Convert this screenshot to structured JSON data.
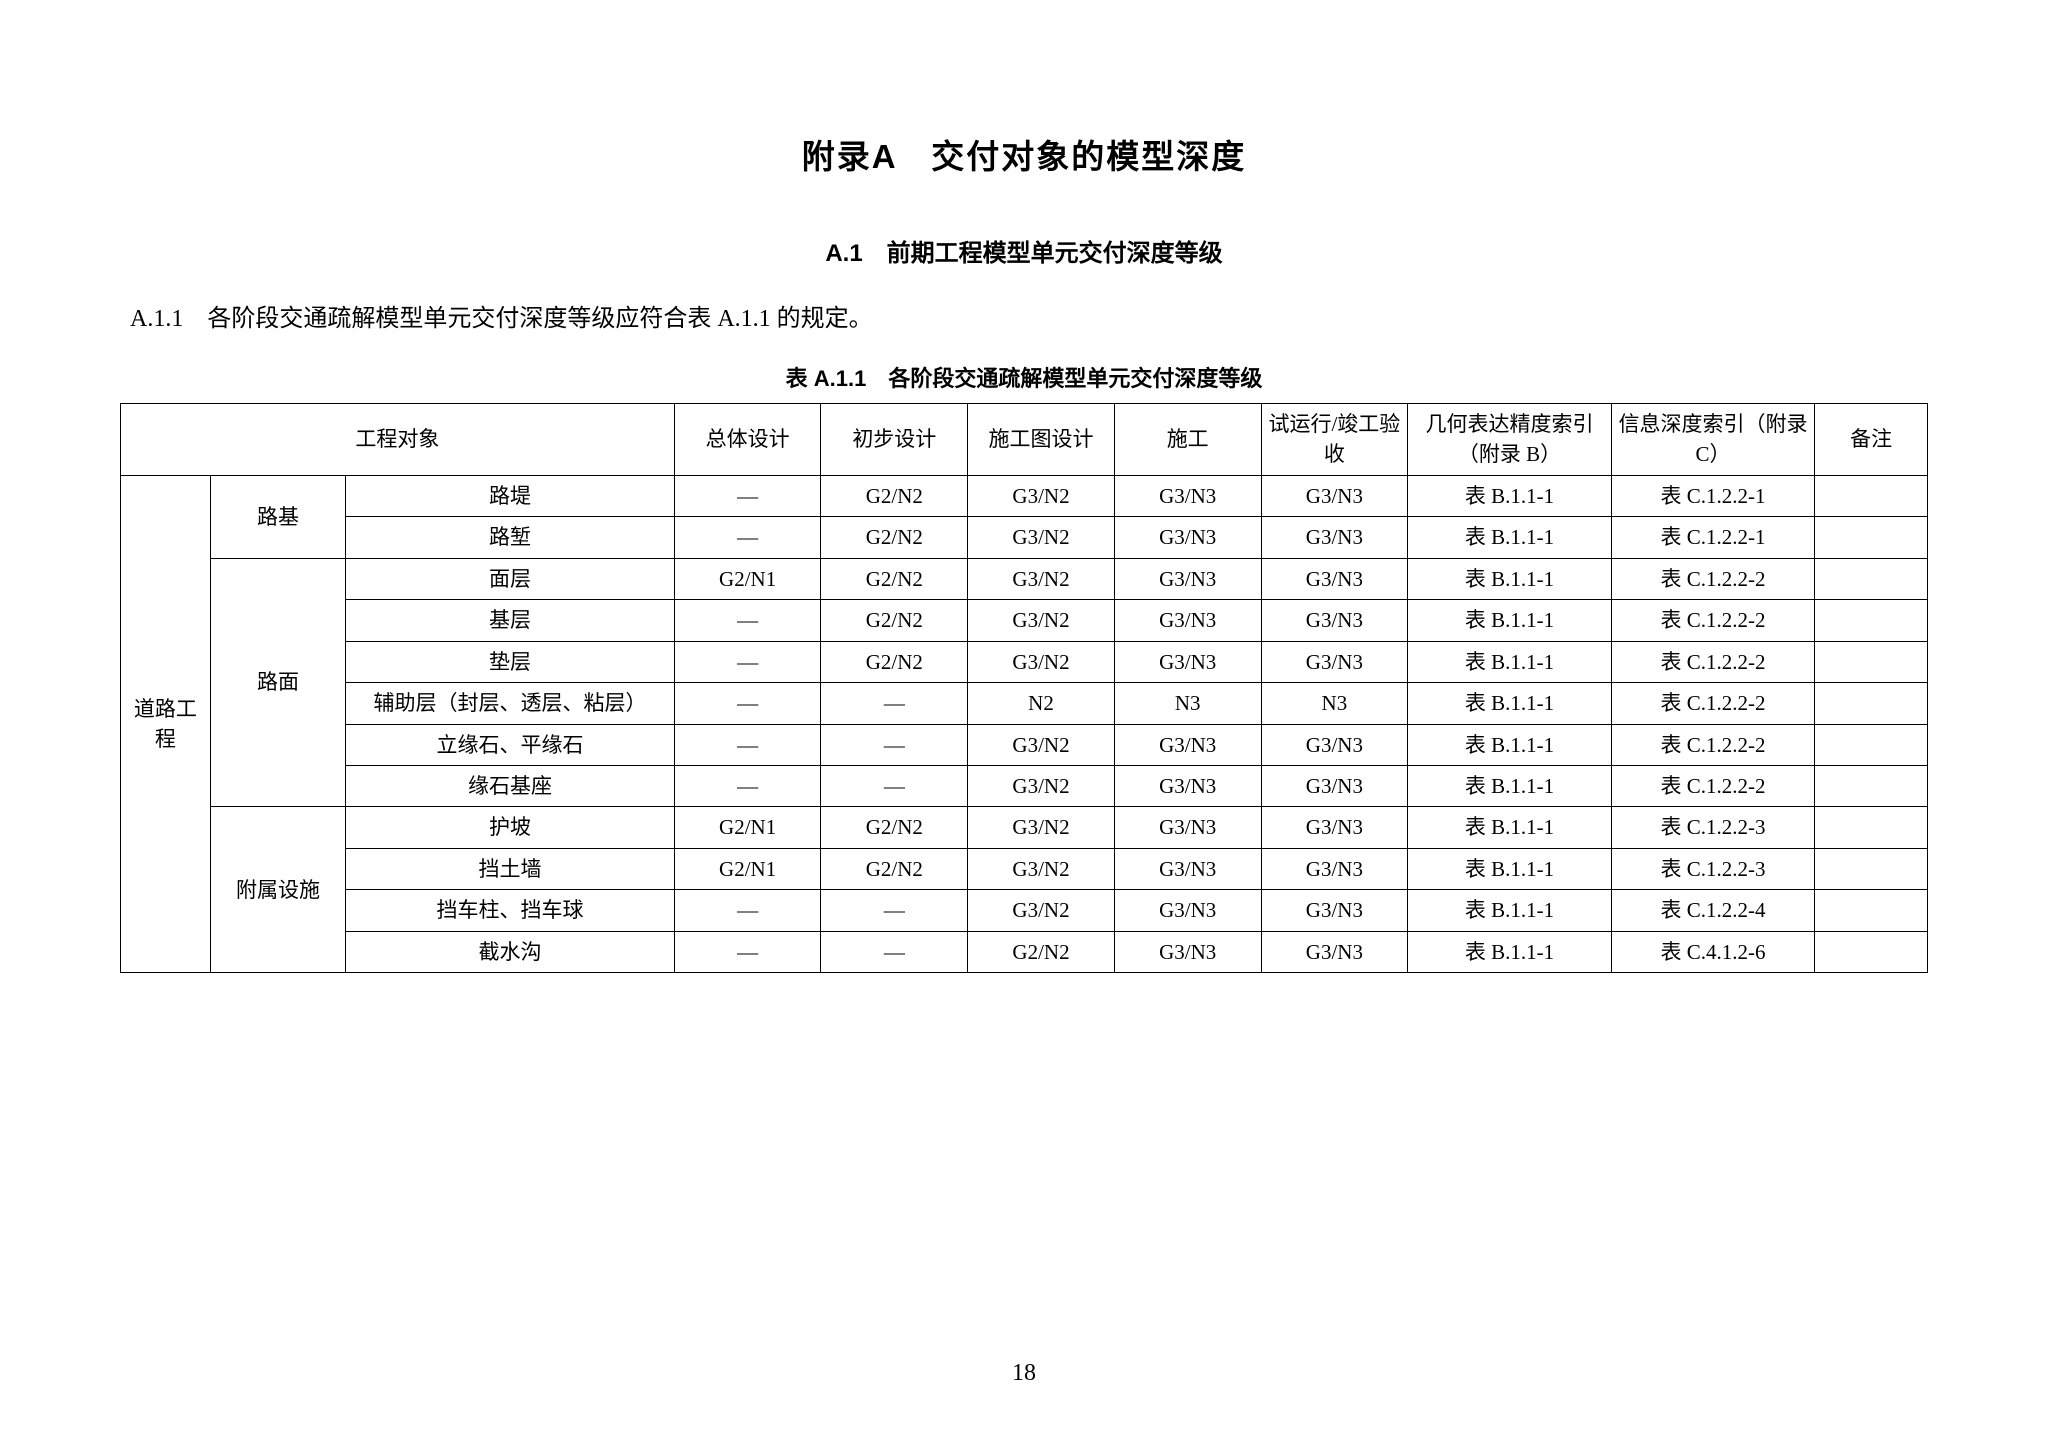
{
  "title": "附录A　交付对象的模型深度",
  "section_title": "A.1　前期工程模型单元交付深度等级",
  "rule": "A.1.1　各阶段交通疏解模型单元交付深度等级应符合表 A.1.1 的规定。",
  "table_caption": "表 A.1.1　各阶段交通疏解模型单元交付深度等级",
  "page_number": "18",
  "table": {
    "headers": {
      "eng_object": "工程对象",
      "overall": "总体设计",
      "prelim": "初步设计",
      "construct_dwg": "施工图设计",
      "construct": "施工",
      "trial": "试运行/竣工验收",
      "geo_index": "几何表达精度索引（附录 B）",
      "info_index": "信息深度索引（附录 C）",
      "note": "备注"
    },
    "cat1_label": "道路工程",
    "groups": [
      {
        "cat2": "路基",
        "rows": [
          {
            "item": "路堤",
            "overall": "—",
            "prelim": "G2/N2",
            "cdwg": "G3/N2",
            "constr": "G3/N3",
            "trial": "G3/N3",
            "geo": "表 B.1.1-1",
            "info": "表 C.1.2.2-1",
            "note": ""
          },
          {
            "item": "路堑",
            "overall": "—",
            "prelim": "G2/N2",
            "cdwg": "G3/N2",
            "constr": "G3/N3",
            "trial": "G3/N3",
            "geo": "表 B.1.1-1",
            "info": "表 C.1.2.2-1",
            "note": ""
          }
        ]
      },
      {
        "cat2": "路面",
        "rows": [
          {
            "item": "面层",
            "overall": "G2/N1",
            "prelim": "G2/N2",
            "cdwg": "G3/N2",
            "constr": "G3/N3",
            "trial": "G3/N3",
            "geo": "表 B.1.1-1",
            "info": "表 C.1.2.2-2",
            "note": ""
          },
          {
            "item": "基层",
            "overall": "—",
            "prelim": "G2/N2",
            "cdwg": "G3/N2",
            "constr": "G3/N3",
            "trial": "G3/N3",
            "geo": "表 B.1.1-1",
            "info": "表 C.1.2.2-2",
            "note": ""
          },
          {
            "item": "垫层",
            "overall": "—",
            "prelim": "G2/N2",
            "cdwg": "G3/N2",
            "constr": "G3/N3",
            "trial": "G3/N3",
            "geo": "表 B.1.1-1",
            "info": "表 C.1.2.2-2",
            "note": ""
          },
          {
            "item": "辅助层（封层、透层、粘层）",
            "overall": "—",
            "prelim": "—",
            "cdwg": "N2",
            "constr": "N3",
            "trial": "N3",
            "geo": "表 B.1.1-1",
            "info": "表 C.1.2.2-2",
            "note": ""
          },
          {
            "item": "立缘石、平缘石",
            "overall": "—",
            "prelim": "—",
            "cdwg": "G3/N2",
            "constr": "G3/N3",
            "trial": "G3/N3",
            "geo": "表 B.1.1-1",
            "info": "表 C.1.2.2-2",
            "note": ""
          },
          {
            "item": "缘石基座",
            "overall": "—",
            "prelim": "—",
            "cdwg": "G3/N2",
            "constr": "G3/N3",
            "trial": "G3/N3",
            "geo": "表 B.1.1-1",
            "info": "表 C.1.2.2-2",
            "note": ""
          }
        ]
      },
      {
        "cat2": "附属设施",
        "rows": [
          {
            "item": "护坡",
            "overall": "G2/N1",
            "prelim": "G2/N2",
            "cdwg": "G3/N2",
            "constr": "G3/N3",
            "trial": "G3/N3",
            "geo": "表 B.1.1-1",
            "info": "表 C.1.2.2-3",
            "note": ""
          },
          {
            "item": "挡土墙",
            "overall": "G2/N1",
            "prelim": "G2/N2",
            "cdwg": "G3/N2",
            "constr": "G3/N3",
            "trial": "G3/N3",
            "geo": "表 B.1.1-1",
            "info": "表 C.1.2.2-3",
            "note": ""
          },
          {
            "item": "挡车柱、挡车球",
            "overall": "—",
            "prelim": "—",
            "cdwg": "G3/N2",
            "constr": "G3/N3",
            "trial": "G3/N3",
            "geo": "表 B.1.1-1",
            "info": "表 C.1.2.2-4",
            "note": ""
          },
          {
            "item": "截水沟",
            "overall": "—",
            "prelim": "—",
            "cdwg": "G2/N2",
            "constr": "G3/N3",
            "trial": "G3/N3",
            "geo": "表 B.1.1-1",
            "info": "表 C.4.1.2-6",
            "note": ""
          }
        ]
      }
    ]
  }
}
